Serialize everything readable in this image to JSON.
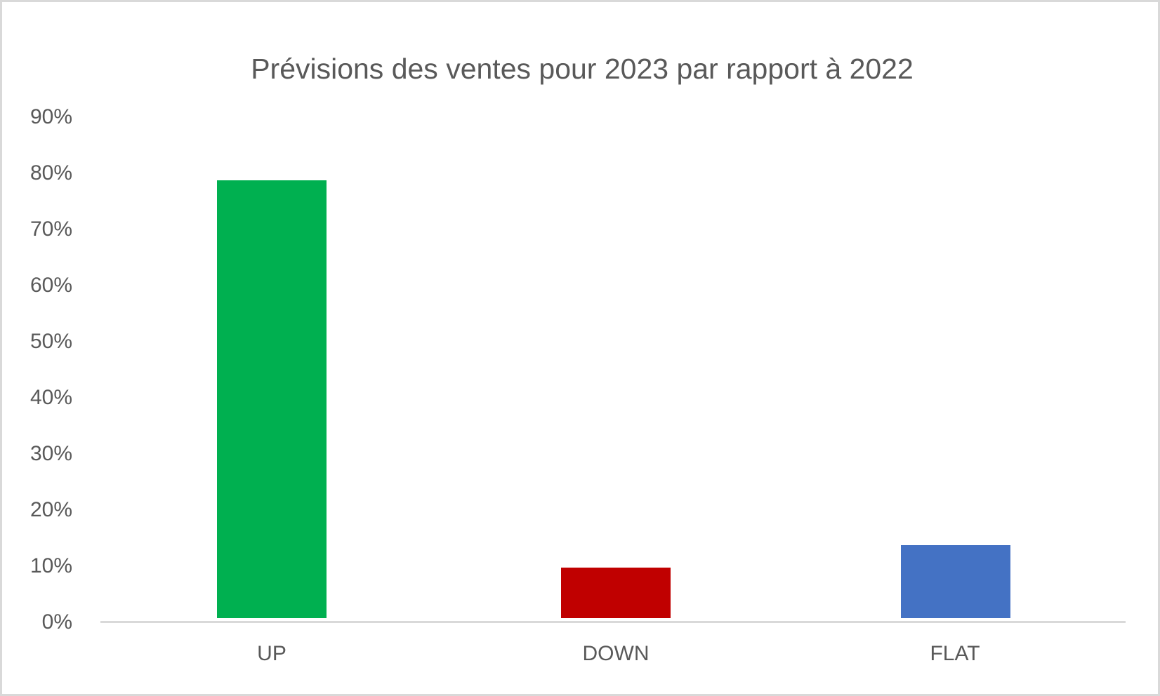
{
  "frame": {
    "background": "#ffffff",
    "border_color": "#d9d9d9"
  },
  "chart_data": {
    "type": "bar",
    "title": "Prévisions des ventes pour 2023 par rapport à 2022",
    "categories": [
      "UP",
      "DOWN",
      "FLAT"
    ],
    "values": [
      78,
      9,
      13
    ],
    "value_unit": "%",
    "colors": [
      "#00B050",
      "#C00000",
      "#4472C4"
    ],
    "ylim": [
      0,
      90
    ],
    "ytick_labels": [
      "90%",
      "80%",
      "70%",
      "60%",
      "50%",
      "40%",
      "30%",
      "20%",
      "10%",
      "0%"
    ],
    "grid": false,
    "legend": false,
    "title_color": "#595959",
    "tick_label_color": "#595959",
    "axis_line_color": "#d9d9d9"
  }
}
